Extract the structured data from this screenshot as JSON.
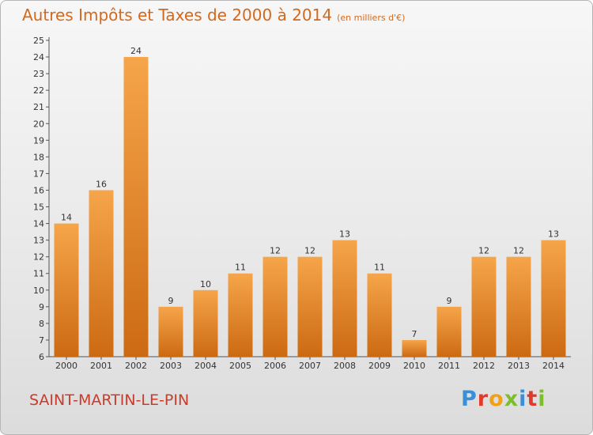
{
  "chart_data": {
    "type": "bar",
    "title": "Autres Impôts et Taxes de 2000 à 2014",
    "subtitle": "(en milliers d'€)",
    "categories": [
      "2000",
      "2001",
      "2002",
      "2003",
      "2004",
      "2005",
      "2006",
      "2007",
      "2008",
      "2009",
      "2010",
      "2011",
      "2012",
      "2013",
      "2014"
    ],
    "values": [
      14,
      16,
      24,
      9,
      10,
      11,
      12,
      12,
      13,
      11,
      7,
      9,
      12,
      12,
      13
    ],
    "ylim": [
      6,
      25
    ],
    "yticks": [
      6,
      7,
      8,
      9,
      10,
      11,
      12,
      13,
      14,
      15,
      16,
      17,
      18,
      19,
      20,
      21,
      22,
      23,
      24,
      25
    ],
    "grid": false,
    "bar_color": "#f08a24"
  },
  "commune": "SAINT-MARTIN-LE-PIN",
  "logo": {
    "text": "Proxiti",
    "letter_colors": [
      "#3a8fd6",
      "#e23a2a",
      "#f0a11c",
      "#7cbf2b",
      "#3a8fd6",
      "#e23a2a",
      "#7cbf2b"
    ]
  }
}
